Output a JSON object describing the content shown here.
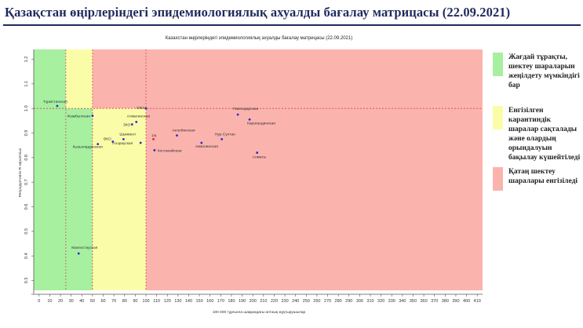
{
  "slide": {
    "title": "Қазақстан өңірлеріндегі эпидемиологиялық ахуалды бағалау матрицасы  (22.09.2021)"
  },
  "legend": [
    {
      "text": "Жағдай тұрақты, шектеу шараларын жеңілдету мүмкіндігі бар",
      "color": "#a6f0a0"
    },
    {
      "text": "Енгізілген карантиндік шаралар сақталады және олардың орындалуын бақылау күшейтіледі",
      "color": "#fbfca8"
    },
    {
      "text": "Қатаң шектеу шаралары енгізіледі",
      "color": "#fbb3ad"
    }
  ],
  "chart_data": {
    "type": "scatter",
    "title": "Казахстан өңірлеріндегі эпидемиологиялық ахуалды бағалау матрицасы  (22.09.2021)",
    "xlabel": "100 000 тұрғынға шаққандағы аптаық жұқтырушылар",
    "ylabel": "Репродуктивтік R көрсеткіші",
    "xlim": [
      -5,
      415
    ],
    "ylim": [
      0.26,
      1.24
    ],
    "xticks": [
      0,
      10,
      20,
      30,
      40,
      50,
      60,
      70,
      80,
      90,
      100,
      110,
      120,
      130,
      140,
      150,
      160,
      170,
      180,
      190,
      200,
      210,
      220,
      230,
      240,
      250,
      260,
      270,
      280,
      290,
      300,
      310,
      320,
      330,
      340,
      350,
      360,
      370,
      380,
      390,
      400,
      410
    ],
    "yticks": [
      0.3,
      0.4,
      0.5,
      0.6,
      0.7,
      0.8,
      0.9,
      1.0,
      1.1,
      1.2
    ],
    "thresholds": {
      "x": [
        25,
        50,
        100
      ],
      "y": 1.0
    },
    "zone_colors": {
      "green": "#a6f0a0",
      "yellow": "#fbfca8",
      "red": "#fbb3ad",
      "line": "#d05050"
    },
    "points": [
      {
        "label": "Түркістанская",
        "x": 17,
        "y": 1.01,
        "color": "#2a2ad0"
      },
      {
        "label": "Жамбылская",
        "x": 50,
        "y": 0.97,
        "color": "#2a2ad0"
      },
      {
        "label": "Кызылординская",
        "x": 55,
        "y": 0.855,
        "color": "#2a2ad0"
      },
      {
        "label": "ВКО",
        "x": 69,
        "y": 0.865,
        "color": "#2a2ad0"
      },
      {
        "label": "Шымкент",
        "x": 79,
        "y": 0.875,
        "color": "#2a2ad0"
      },
      {
        "label": "Алматинская",
        "x": 91,
        "y": 0.945,
        "color": "#2a2ad0"
      },
      {
        "label": "ЗКО",
        "x": 87,
        "y": 0.935,
        "color": "#2a2ad0"
      },
      {
        "label": "Атырауская",
        "x": 95,
        "y": 0.86,
        "color": "#2a2ad0"
      },
      {
        "label": "СКО",
        "x": 100,
        "y": 1.0,
        "color": "#2a2ad0"
      },
      {
        "label": "РК",
        "x": 107,
        "y": 0.875,
        "color": "#e02020"
      },
      {
        "label": "Костанайская",
        "x": 108,
        "y": 0.83,
        "color": "#2a2ad0"
      },
      {
        "label": "Актюбинская",
        "x": 129,
        "y": 0.89,
        "color": "#2a2ad0"
      },
      {
        "label": "Акмолинская",
        "x": 152,
        "y": 0.86,
        "color": "#2a2ad0"
      },
      {
        "label": "Нур-Султан",
        "x": 171,
        "y": 0.875,
        "color": "#2a2ad0"
      },
      {
        "label": "Павлодарская",
        "x": 186,
        "y": 0.975,
        "color": "#2a2ad0"
      },
      {
        "label": "Карагандинская",
        "x": 197,
        "y": 0.955,
        "color": "#2a2ad0"
      },
      {
        "label": "Алматы",
        "x": 204,
        "y": 0.82,
        "color": "#2a2ad0"
      },
      {
        "label": "Мангистауская",
        "x": 37,
        "y": 0.41,
        "color": "#2a2ad0"
      }
    ]
  }
}
